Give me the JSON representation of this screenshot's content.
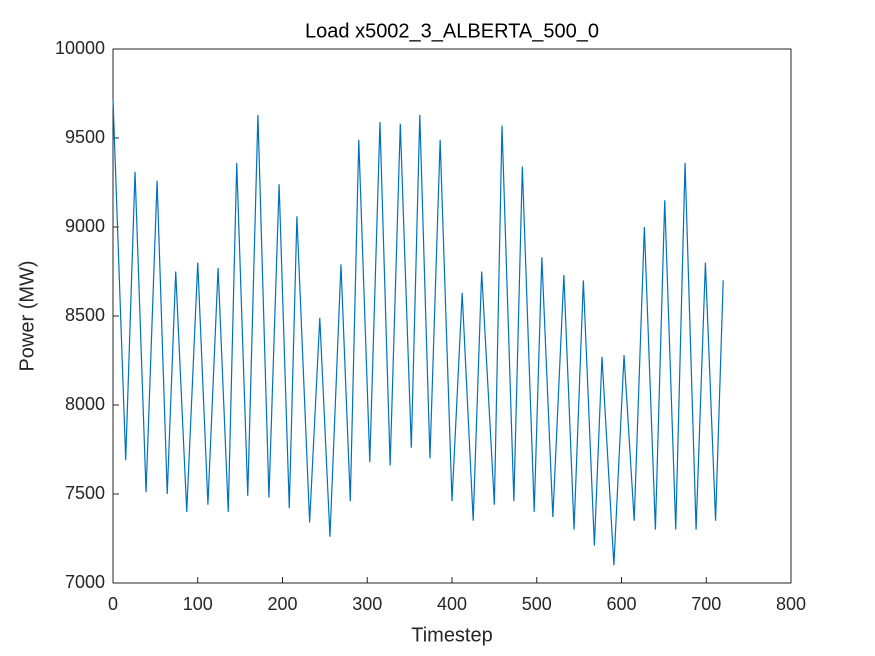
{
  "chart_data": {
    "type": "line",
    "title": "Load x5002_3_ALBERTA_500_0",
    "x_label": "Timestep",
    "y_label": "Power (MW)",
    "color": "#0072bd",
    "x": [
      0,
      15,
      26,
      39,
      52,
      64,
      74,
      87,
      100,
      112,
      124,
      136,
      146,
      159,
      171,
      184,
      196,
      208,
      217,
      232,
      244,
      256,
      269,
      280,
      290,
      303,
      315,
      327,
      339,
      352,
      362,
      374,
      386,
      400,
      412,
      425,
      435,
      450,
      459,
      473,
      483,
      497,
      506,
      519,
      532,
      544,
      555,
      568,
      577,
      591,
      603,
      615,
      627,
      640,
      651,
      664,
      675,
      688,
      699,
      711,
      720
    ],
    "values": [
      9720,
      7690,
      9310,
      7510,
      9260,
      7500,
      8750,
      7400,
      8800,
      7440,
      8770,
      7400,
      9360,
      7490,
      9630,
      7480,
      9240,
      7420,
      9060,
      7340,
      8490,
      7260,
      8790,
      7460,
      9490,
      7680,
      9590,
      7660,
      9580,
      7760,
      9630,
      7700,
      9490,
      7460,
      8630,
      7350,
      8750,
      7440,
      9570,
      7460,
      9340,
      7400,
      8830,
      7370,
      8730,
      7300,
      8700,
      7210,
      8270,
      7100,
      8280,
      7350,
      9000,
      7300,
      9150,
      7300,
      9360,
      7300,
      8800,
      7350,
      8700
    ],
    "xlim": [
      0,
      800
    ],
    "xticks": [
      0,
      100,
      200,
      300,
      400,
      500,
      600,
      700,
      800
    ],
    "ylim": [
      7000,
      10000
    ],
    "yticks": [
      7000,
      7500,
      8000,
      8500,
      9000,
      9500,
      10000
    ],
    "grid": false
  }
}
